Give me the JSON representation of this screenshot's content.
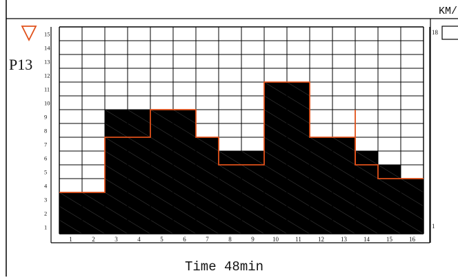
{
  "header": {
    "unit_label": "KM/"
  },
  "program": {
    "label": "P13",
    "arrow_color": "#e0501a",
    "indicator_icon": "triangle-down-icon"
  },
  "footer": {
    "time_label": "Time 48min"
  },
  "right_scale": {
    "top_value": "18",
    "bottom_value": "1"
  },
  "chart_data": {
    "type": "bar",
    "categories": [
      "1",
      "2",
      "3",
      "4",
      "5",
      "6",
      "7",
      "8",
      "9",
      "10",
      "11",
      "12",
      "13",
      "14",
      "15",
      "16"
    ],
    "y_ticks": [
      "1",
      "2",
      "3",
      "4",
      "5",
      "6",
      "7",
      "8",
      "9",
      "10",
      "11",
      "12",
      "13",
      "14",
      "15"
    ],
    "ylim": [
      0,
      15
    ],
    "series": [
      {
        "values": [
          3,
          3,
          9,
          9,
          9,
          9,
          7,
          6,
          6,
          11,
          11,
          7,
          7,
          6,
          5,
          4
        ]
      }
    ],
    "profile_line": [
      3,
      3,
      7,
      7,
      9,
      9,
      7,
      5,
      5,
      11,
      11,
      7,
      7,
      5,
      4,
      4
    ],
    "colors": {
      "bar": "#000000",
      "profile": "#e0501a",
      "grid": "#000000"
    }
  }
}
